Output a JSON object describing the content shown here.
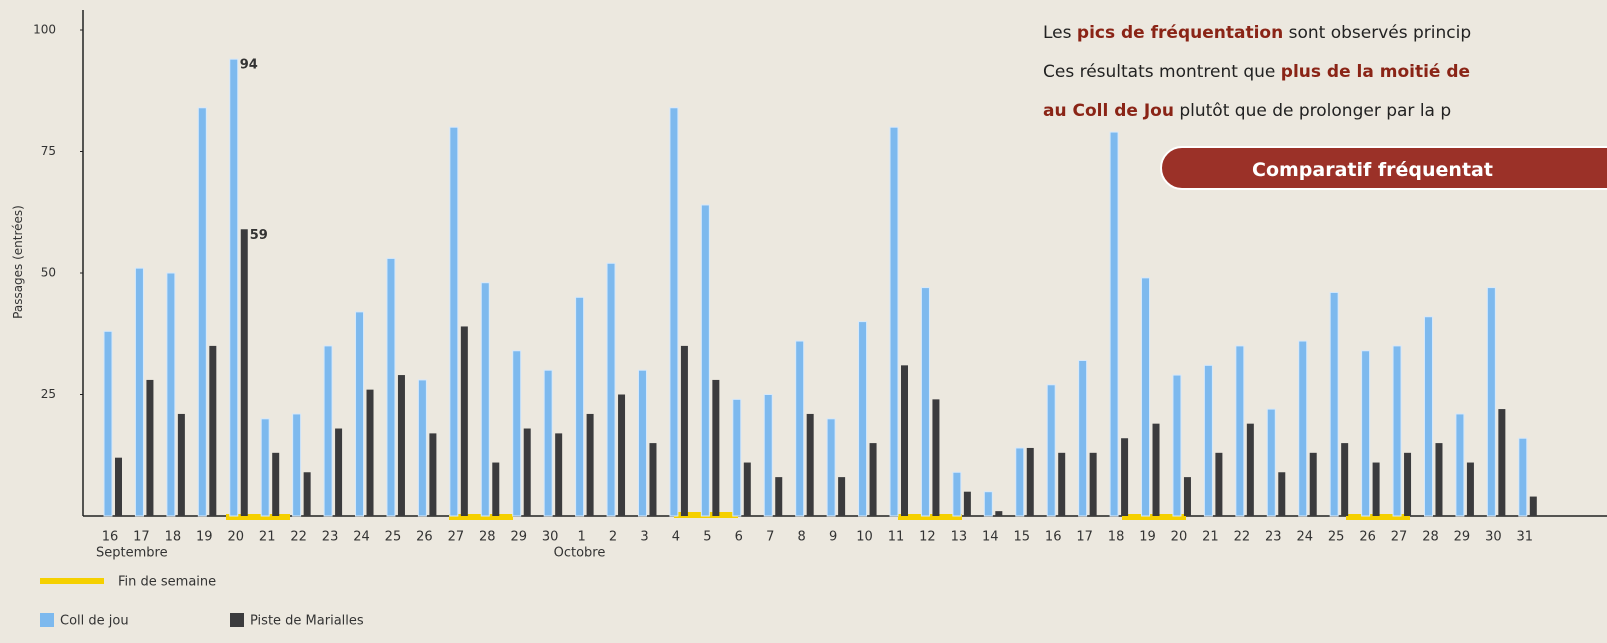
{
  "chart_data": {
    "type": "bar",
    "y_label": "Passages (entrées)",
    "categories": [
      "16",
      "17",
      "18",
      "19",
      "20",
      "21",
      "22",
      "23",
      "24",
      "25",
      "26",
      "27",
      "28",
      "29",
      "30",
      "1",
      "2",
      "3",
      "4",
      "5",
      "6",
      "7",
      "8",
      "9",
      "10",
      "11",
      "12",
      "13",
      "14",
      "15",
      "16",
      "17",
      "18",
      "19",
      "20",
      "21",
      "22",
      "23",
      "24",
      "25",
      "26",
      "27",
      "28",
      "29",
      "30",
      "31"
    ],
    "month_labels": [
      "Septembre",
      "Octobre"
    ],
    "series": [
      {
        "name": "Coll de jou",
        "color": "#7db9ee",
        "values": [
          38,
          51,
          50,
          84,
          94,
          20,
          21,
          35,
          42,
          53,
          28,
          80,
          48,
          34,
          30,
          45,
          52,
          30,
          84,
          64,
          24,
          25,
          36,
          20,
          40,
          80,
          47,
          9,
          5,
          14,
          27,
          32,
          79,
          49,
          29,
          31,
          35,
          22,
          36,
          46,
          34,
          35,
          41,
          21,
          47,
          16
        ],
        "value_labels": [
          null,
          null,
          null,
          null,
          "94",
          null,
          null,
          null,
          null,
          null,
          null,
          null,
          null,
          null,
          null,
          null,
          null,
          null,
          null,
          null,
          null,
          null,
          null,
          null,
          null,
          null,
          null,
          null,
          null,
          null,
          null,
          null,
          null,
          null,
          null,
          null,
          null,
          null,
          null,
          null,
          null,
          null,
          null,
          null,
          null,
          null
        ]
      },
      {
        "name": "Piste de Marialles",
        "color": "#3b3b3d",
        "values": [
          12,
          28,
          21,
          35,
          59,
          13,
          9,
          18,
          26,
          29,
          17,
          39,
          11,
          18,
          17,
          21,
          25,
          15,
          35,
          28,
          11,
          8,
          21,
          8,
          15,
          31,
          24,
          5,
          1,
          14,
          13,
          13,
          16,
          19,
          8,
          13,
          19,
          9,
          13,
          15,
          11,
          13,
          15,
          11,
          22,
          4
        ],
        "value_labels": [
          null,
          null,
          null,
          null,
          "59",
          null,
          null,
          null,
          null,
          null,
          null,
          null,
          null,
          null,
          null,
          null,
          null,
          null,
          null,
          null,
          null,
          null,
          null,
          null,
          null,
          null,
          null,
          null,
          null,
          null,
          null,
          null,
          null,
          null,
          null,
          null,
          null,
          null,
          null,
          null,
          null,
          null,
          null,
          null,
          null,
          null
        ]
      }
    ],
    "weekend_legend": "Fin de semaine",
    "weekend_color": "#f5d000",
    "ylim": [
      0,
      100
    ],
    "yticks": [
      25,
      50,
      75,
      100
    ],
    "grid": false
  },
  "overlay": {
    "lines": [
      [
        {
          "text": "Les ",
          "bold": false
        },
        {
          "text": "pics de fréquentation",
          "bold": true
        },
        {
          "text": " sont observés princip",
          "bold": false
        }
      ],
      [
        {
          "text": "Ces résultats montrent que ",
          "bold": false
        },
        {
          "text": "plus de la moitié de",
          "bold": true
        }
      ],
      [
        {
          "text": "au Coll de Jou",
          "bold": true
        },
        {
          "text": " plutôt que de prolonger par la p",
          "bold": false
        }
      ]
    ],
    "button": "Comparatif fréquentat"
  }
}
